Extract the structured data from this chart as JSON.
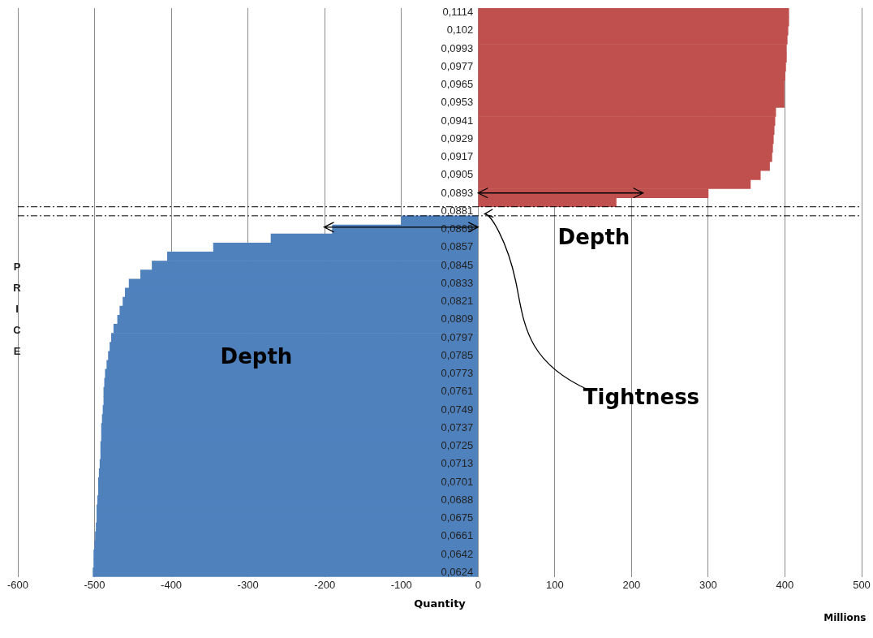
{
  "chart_data": {
    "type": "bar",
    "orientation": "horizontal",
    "xlabel": "Quantity",
    "ylabel": "PRICE",
    "categories": [
      "0,1114",
      null,
      "0,102",
      null,
      "0,0993",
      null,
      "0,0977",
      null,
      "0,0965",
      null,
      "0,0953",
      null,
      "0,0941",
      null,
      "0,0929",
      null,
      "0,0917",
      null,
      "0,0905",
      null,
      "0,0893",
      null,
      "0,0881",
      null,
      "0,0869",
      null,
      "0,0857",
      null,
      "0,0845",
      null,
      "0,0833",
      null,
      "0,0821",
      null,
      "0,0809",
      null,
      "0,0797",
      null,
      "0,0785",
      null,
      "0,0773",
      null,
      "0,0761",
      null,
      "0,0749",
      null,
      "0,0737",
      null,
      "0,0725",
      null,
      "0,0713",
      null,
      "0,0701",
      null,
      "0,0688",
      null,
      "0,0675",
      null,
      "0,0661",
      null,
      "0,0642",
      null,
      "0,0624"
    ],
    "series": [
      {
        "color": "#c0504d",
        "values": [
          405,
          405,
          404,
          403,
          402,
          402,
          401,
          400,
          399,
          399,
          399,
          388,
          387,
          386,
          385,
          384,
          383,
          380,
          368,
          355,
          300,
          180,
          null,
          null,
          null,
          null,
          null,
          null,
          null,
          null,
          null,
          null,
          null,
          null,
          null,
          null,
          null,
          null,
          null,
          null,
          null,
          null,
          null,
          null,
          null,
          null,
          null,
          null,
          null,
          null,
          null,
          null,
          null,
          null,
          null,
          null,
          null,
          null,
          null,
          null,
          null,
          null,
          null
        ]
      },
      {
        "color": "#4f81bd",
        "values": [
          null,
          null,
          null,
          null,
          null,
          null,
          null,
          null,
          null,
          null,
          null,
          null,
          null,
          null,
          null,
          null,
          null,
          null,
          null,
          null,
          null,
          null,
          null,
          -100,
          -190,
          -270,
          -345,
          -405,
          -425,
          -440,
          -455,
          -460,
          -463,
          -467,
          -470,
          -475,
          -478,
          -480,
          -482,
          -484,
          -486,
          -487,
          -488,
          -488,
          -489,
          -490,
          -491,
          -491,
          -492,
          -492,
          -493,
          -494,
          -495,
          -495,
          -496,
          -497,
          -497,
          -498,
          -499,
          -500,
          -501,
          -501,
          -502
        ]
      }
    ],
    "xlim": [
      -600,
      500
    ],
    "xticks": [
      -600,
      -500,
      -400,
      -300,
      -200,
      -100,
      0,
      100,
      200,
      300,
      400,
      500
    ],
    "grid": "x",
    "legend": false,
    "annotations": [
      "Depth",
      "Depth",
      "Tightness",
      "Millions"
    ]
  }
}
